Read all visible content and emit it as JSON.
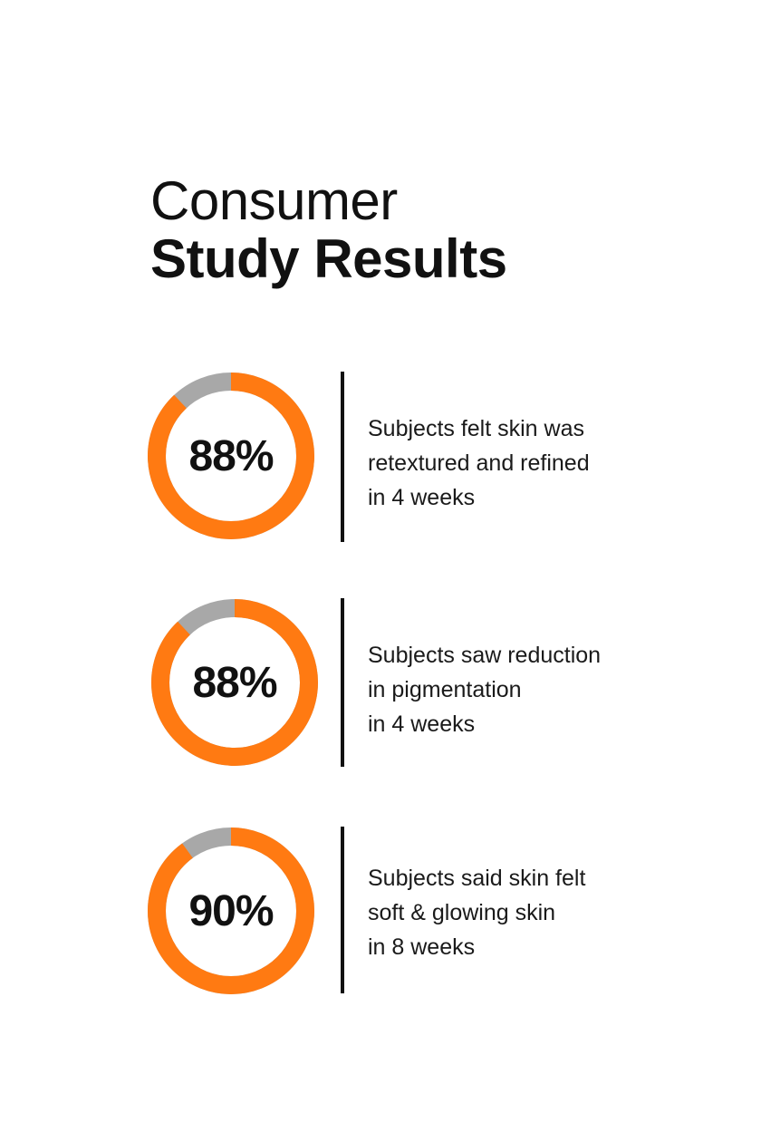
{
  "title": {
    "line1": "Consumer",
    "line2": "Study Results"
  },
  "colors": {
    "accent": "#ff7a12",
    "track": "#a8a8a8",
    "text": "#111111"
  },
  "stats": [
    {
      "value_label": "88%",
      "percent": 88,
      "lines": [
        "Subjects felt skin was",
        "retextured and refined",
        "in 4 weeks"
      ]
    },
    {
      "value_label": "88%",
      "percent": 88,
      "lines": [
        "Subjects saw reduction",
        "in pigmentation",
        "in 4 weeks"
      ]
    },
    {
      "value_label": "90%",
      "percent": 90,
      "lines": [
        "Subjects said skin felt",
        "soft & glowing skin",
        "in 8 weeks"
      ]
    }
  ]
}
